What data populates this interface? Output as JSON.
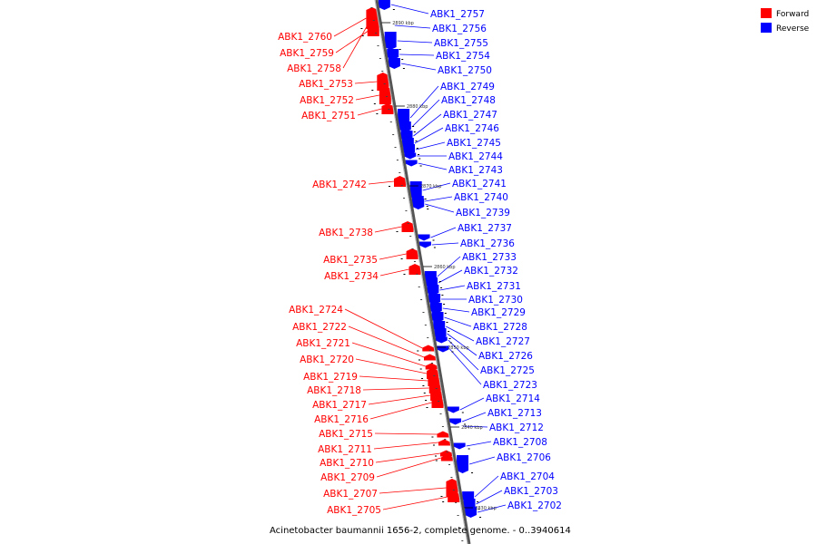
{
  "caption": "Acinetobacter baumannii 1656-2, complete genome. - 0..3940614",
  "legend": [
    {
      "label": "Forward",
      "color": "#ff0000"
    },
    {
      "label": "Reverse",
      "color": "#0000ff"
    }
  ],
  "colors": {
    "forward": "#ff0000",
    "reverse": "#0000ff",
    "line": "#888888"
  },
  "scale_marks": [
    "2890 kbp",
    "2880 kbp",
    "2870 kbp",
    "2860 kbp",
    "2850 kbp",
    "2840 kbp",
    "2830 kbp"
  ],
  "genes_forward": [
    "ABK1_2760",
    "ABK1_2759",
    "ABK1_2758",
    "ABK1_2753",
    "ABK1_2752",
    "ABK1_2751",
    "ABK1_2742",
    "ABK1_2738",
    "ABK1_2735",
    "ABK1_2734",
    "ABK1_2724",
    "ABK1_2722",
    "ABK1_2721",
    "ABK1_2720",
    "ABK1_2719",
    "ABK1_2718",
    "ABK1_2717",
    "ABK1_2716",
    "ABK1_2715",
    "ABK1_2711",
    "ABK1_2710",
    "ABK1_2709",
    "ABK1_2707",
    "ABK1_2705"
  ],
  "genes_reverse": [
    "ABK1_2757",
    "ABK1_2756",
    "ABK1_2755",
    "ABK1_2754",
    "ABK1_2750",
    "ABK1_2749",
    "ABK1_2748",
    "ABK1_2747",
    "ABK1_2746",
    "ABK1_2745",
    "ABK1_2744",
    "ABK1_2743",
    "ABK1_2741",
    "ABK1_2740",
    "ABK1_2739",
    "ABK1_2737",
    "ABK1_2736",
    "ABK1_2733",
    "ABK1_2732",
    "ABK1_2731",
    "ABK1_2730",
    "ABK1_2729",
    "ABK1_2728",
    "ABK1_2727",
    "ABK1_2726",
    "ABK1_2725",
    "ABK1_2723",
    "ABK1_2714",
    "ABK1_2713",
    "ABK1_2712",
    "ABK1_2708",
    "ABK1_2706",
    "ABK1_2704",
    "ABK1_2703",
    "ABK1_2702"
  ]
}
